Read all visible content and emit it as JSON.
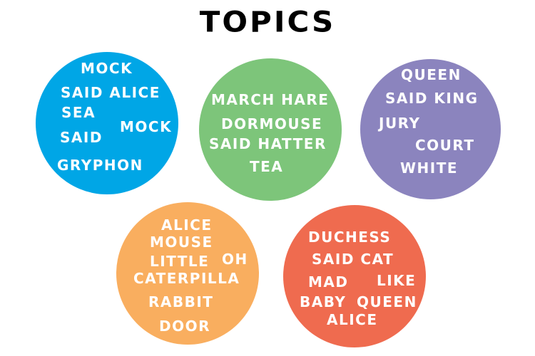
{
  "title": "TOPICS",
  "topics": [
    {
      "color": "#00a6e6",
      "words": [
        "MOCK",
        "SAID ALICE",
        "SEA",
        "MOCK",
        "SAID",
        "GRYPHON"
      ]
    },
    {
      "color": "#7dc57a",
      "words": [
        "MARCH HARE",
        "DORMOUSE",
        "SAID HATTER",
        "TEA"
      ]
    },
    {
      "color": "#8b84be",
      "words": [
        "QUEEN",
        "SAID KING",
        "JURY",
        "COURT",
        "WHITE"
      ]
    },
    {
      "color": "#f9ae5f",
      "words": [
        "ALICE",
        "MOUSE",
        "LITTLE",
        "OH",
        "CATERPILLA",
        "RABBIT",
        "DOOR"
      ]
    },
    {
      "color": "#ef6b4f",
      "words": [
        "DUCHESS",
        "SAID CAT",
        "MAD",
        "LIKE",
        "BABY",
        "QUEEN",
        "ALICE"
      ]
    }
  ]
}
